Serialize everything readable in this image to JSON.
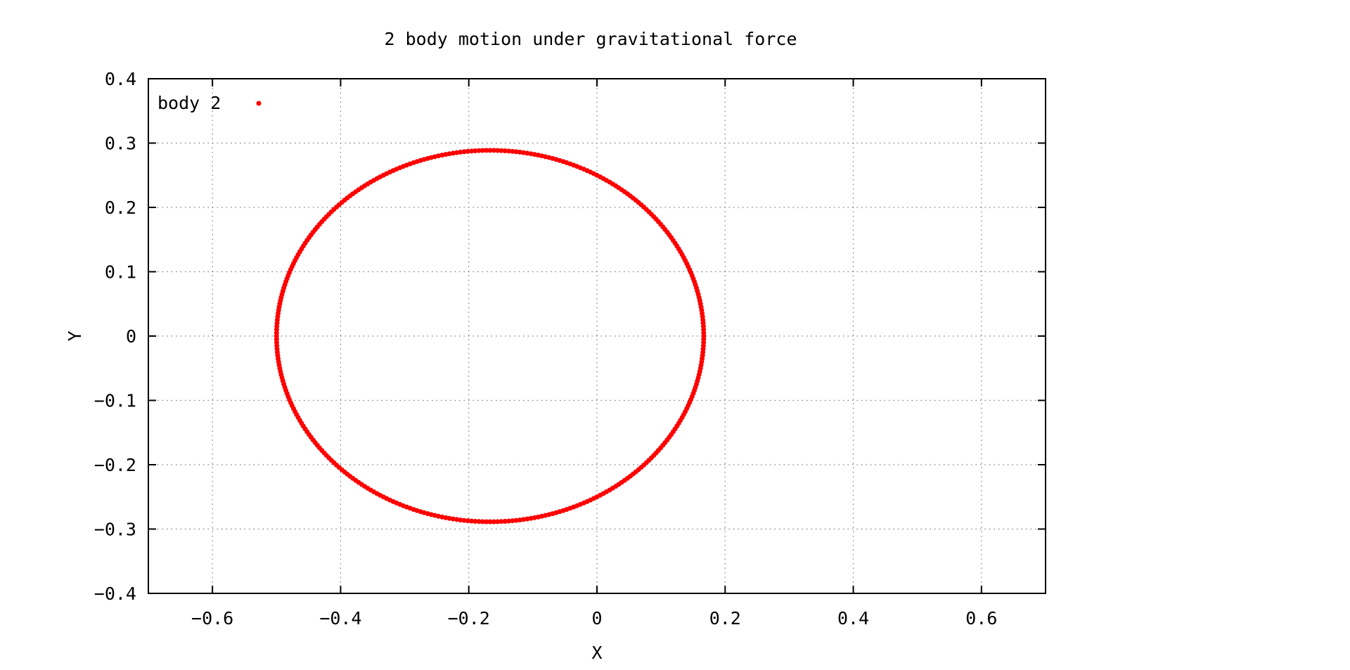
{
  "chart_data": {
    "type": "scatter",
    "title": "2 body motion under gravitational force",
    "xlabel": "X",
    "ylabel": "Y",
    "xlim": [
      -0.7,
      0.7
    ],
    "ylim": [
      -0.4,
      0.4
    ],
    "xticks": [
      -0.6,
      -0.4,
      -0.2,
      0,
      0.2,
      0.4,
      0.6
    ],
    "xtick_labels": [
      "−0.6",
      "−0.4",
      "−0.2",
      "0",
      "0.2",
      "0.4",
      "0.6"
    ],
    "yticks": [
      -0.4,
      -0.3,
      -0.2,
      -0.1,
      0,
      0.1,
      0.2,
      0.3,
      0.4
    ],
    "ytick_labels": [
      "−0.4",
      "−0.3",
      "−0.2",
      "−0.1",
      "0",
      "0.1",
      "0.2",
      "0.3",
      "0.4"
    ],
    "grid": true,
    "legend_position": "top-left",
    "series": [
      {
        "name": "body 2",
        "color": "#ff0000",
        "marker": "dot",
        "orbit": {
          "center_x": -0.1667,
          "center_y": 0.0,
          "semi_axis_x": 0.3333,
          "semi_axis_y": 0.2887,
          "point_count": 360
        }
      }
    ]
  }
}
